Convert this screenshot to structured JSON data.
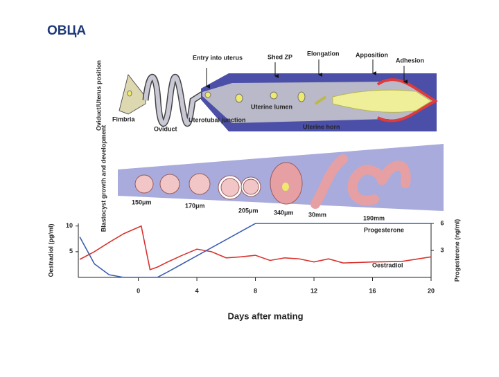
{
  "header": {
    "title": "ОВЦА"
  },
  "diagram": {
    "position_label": "Oviduct/Uterus position",
    "labels": {
      "entry": "Entry into uterus",
      "shed_zp": "Shed ZP",
      "elongation": "Elongation",
      "apposition": "Apposition",
      "adhesion": "Adhesion",
      "fimbria": "Fimbria",
      "oviduct": "Oviduct",
      "uterotubal": "Uterotubal junction",
      "lumen": "Uterine lumen",
      "horn": "Uterine horn"
    }
  },
  "blastocyst": {
    "label": "Blastocyst growth and development",
    "sizes": [
      "150μm",
      "170μm",
      "205μm",
      "340μm",
      "30mm",
      "190mm"
    ]
  },
  "chart_data": {
    "type": "line",
    "x_label": "Days after mating",
    "y_label": "Oestradiol (pg/ml)",
    "y2_label": "Progesterone (ng/ml)",
    "x": [
      -4,
      -3,
      -2,
      -1,
      0.2,
      0.8,
      1.3,
      2,
      3,
      4,
      5,
      6,
      7,
      8,
      9,
      10,
      11,
      12,
      13,
      14,
      16,
      18,
      20
    ],
    "series": [
      {
        "name": "Oestradiol",
        "color": "#d8322e",
        "values": [
          3.5,
          5,
          6.8,
          8.5,
          10,
          1.5,
          2,
          3,
          4.3,
          5.5,
          5,
          3.8,
          4,
          4.3,
          3.3,
          3.8,
          3.6,
          3,
          3.6,
          2.8,
          3,
          3.1,
          4
        ]
      },
      {
        "name": "Progesterone",
        "color": "#3a5fb0",
        "axis": "y2",
        "values": [
          4.5,
          1.5,
          0.3,
          0,
          0,
          0,
          0,
          0.6,
          1.5,
          2.4,
          3.3,
          4.2,
          5.1,
          6,
          6,
          6,
          6,
          6,
          6,
          6,
          6,
          6,
          6
        ]
      }
    ],
    "xlim": [
      -4.1,
      20
    ],
    "xticks": [
      0,
      4,
      8,
      12,
      16,
      20
    ],
    "ylim": [
      0,
      10.5
    ],
    "yticks": [
      5,
      10
    ],
    "y2lim": [
      0,
      6
    ],
    "y2ticks": [
      3,
      6
    ]
  }
}
